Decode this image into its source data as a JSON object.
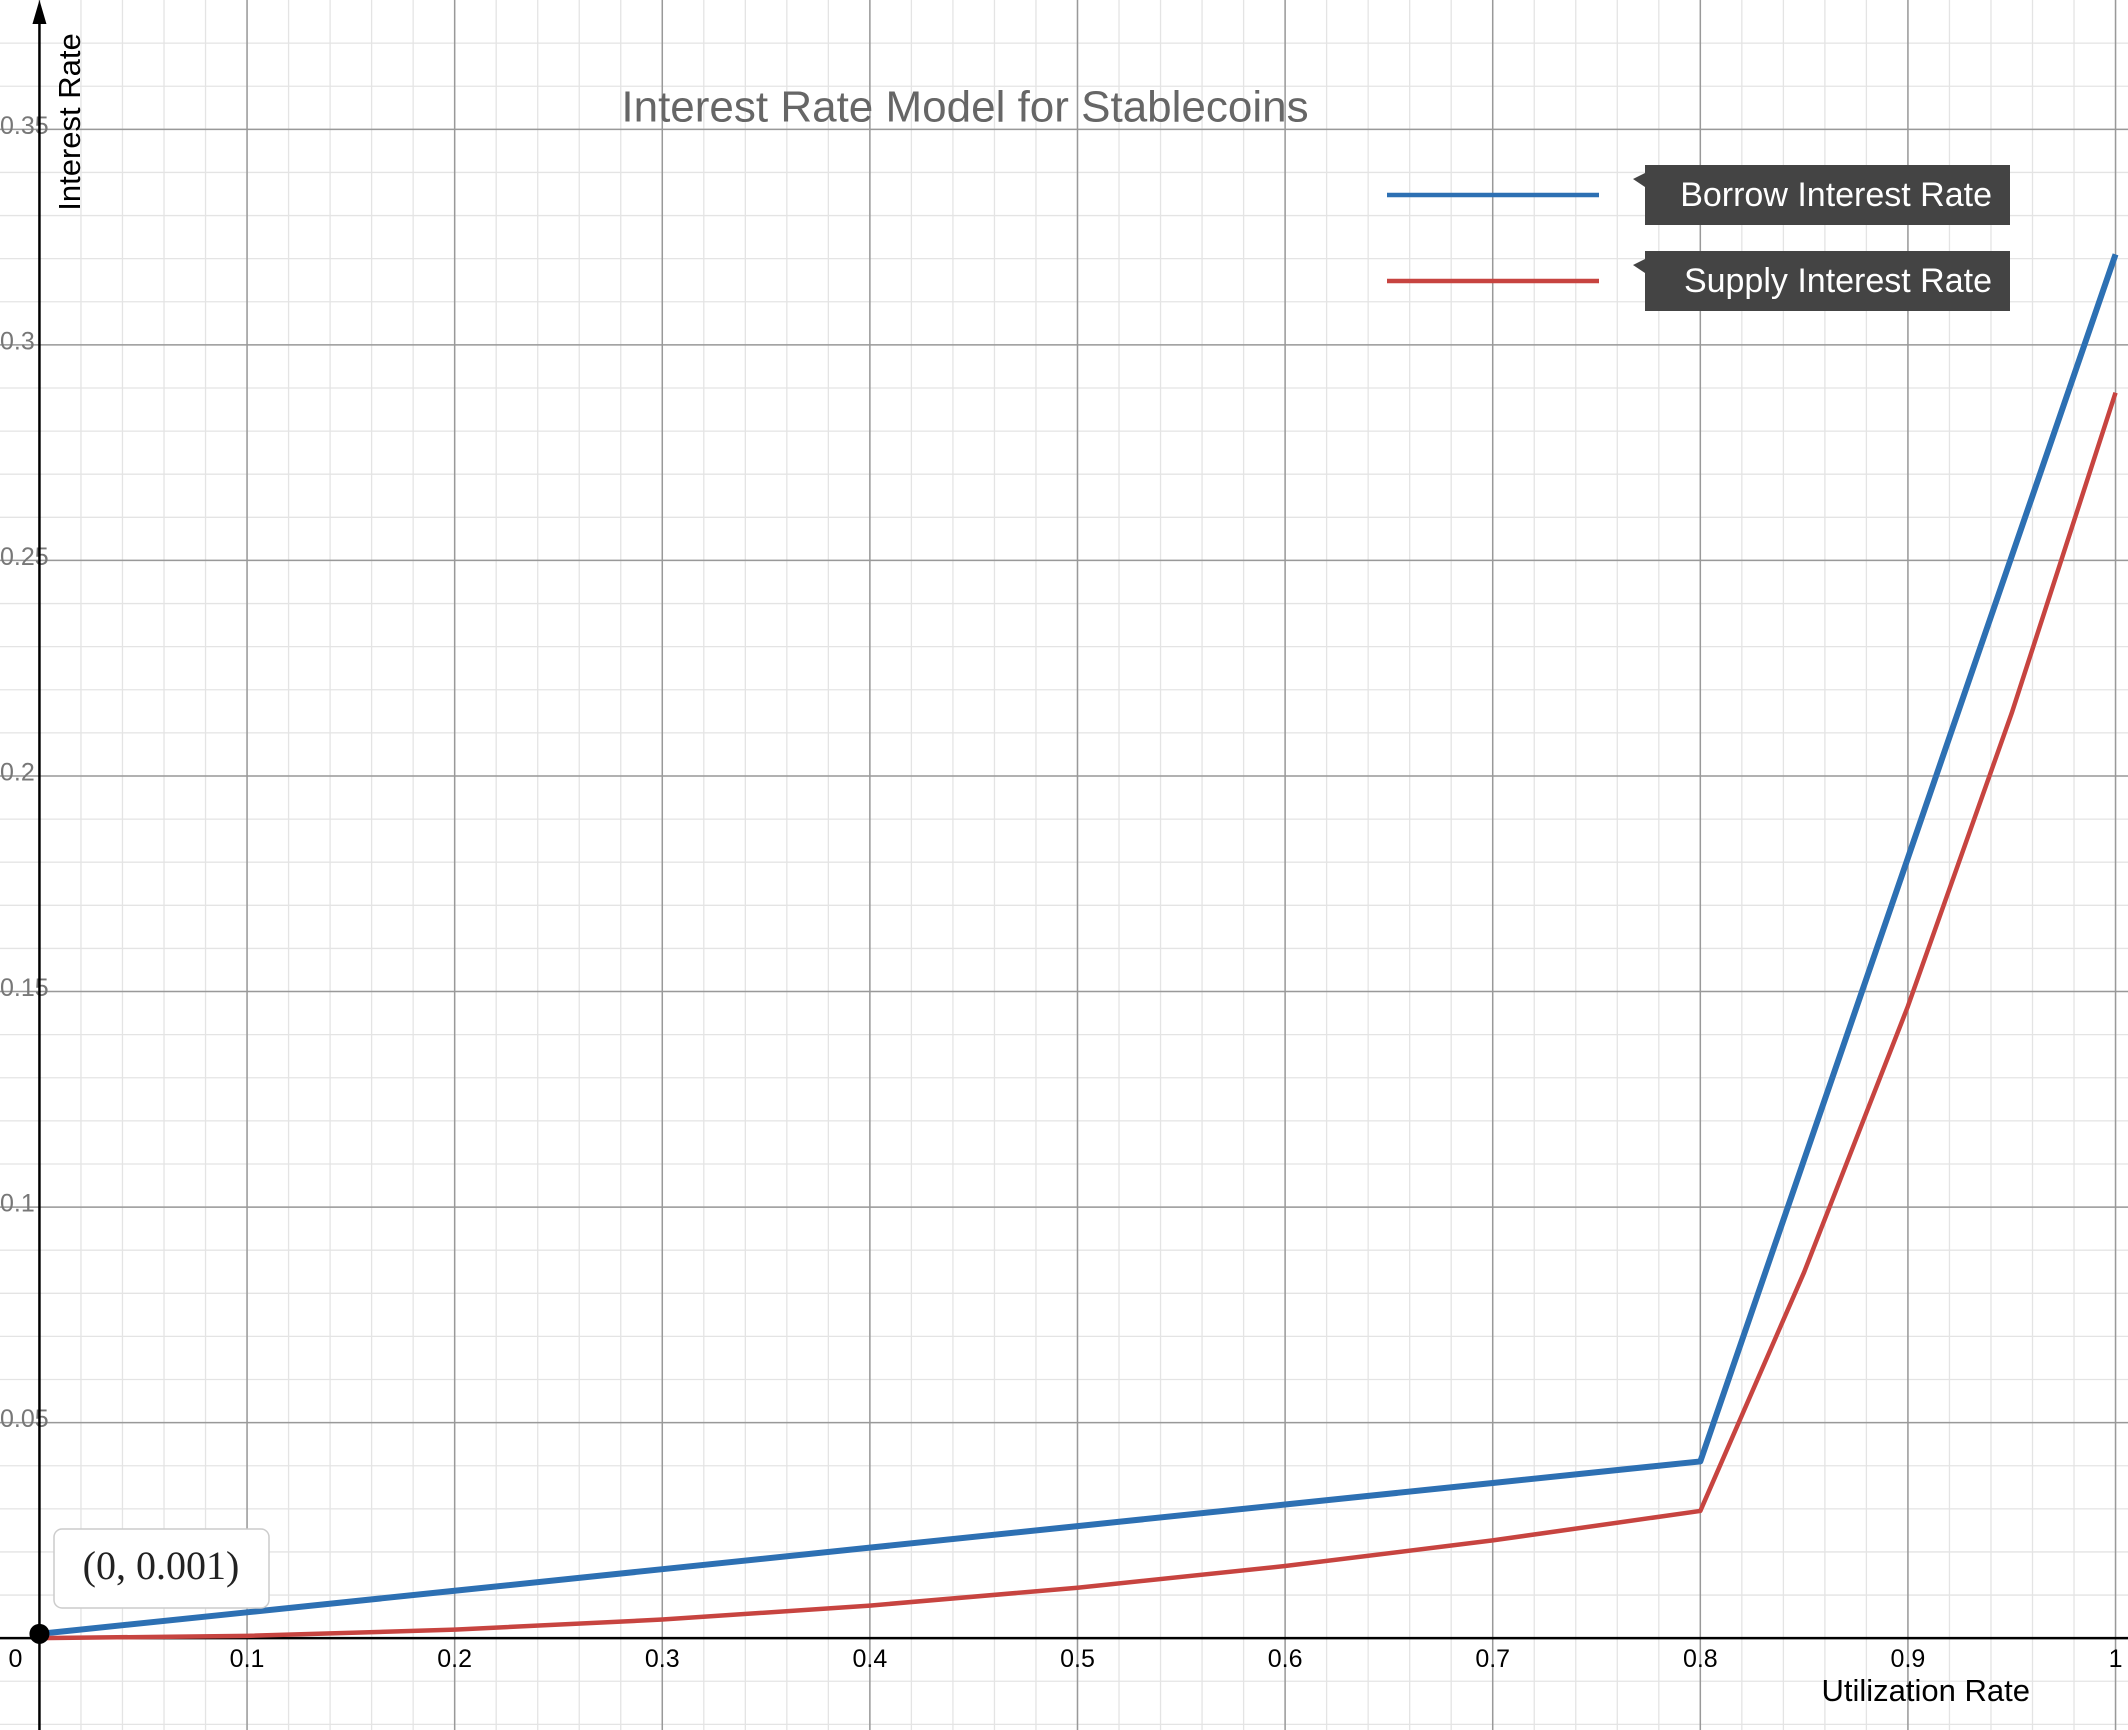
{
  "chart_data": {
    "type": "line",
    "title": "Interest Rate Model for Stablecoins",
    "x_label": "Utilization Rate",
    "y_label": "Interest Rate",
    "x": [
      0,
      0.1,
      0.2,
      0.3,
      0.4,
      0.5,
      0.6,
      0.7,
      0.8,
      0.85,
      0.9,
      0.95,
      1
    ],
    "series": [
      {
        "name": "Borrow Interest Rate",
        "color": "#2d70b3",
        "values": [
          0.001,
          0.006,
          0.011,
          0.016,
          0.021,
          0.026,
          0.031,
          0.036,
          0.041,
          0.111,
          0.181,
          0.251,
          0.321
        ]
      },
      {
        "name": "Supply Interest Rate",
        "color": "#c74440",
        "values": [
          0,
          0.00054,
          0.00198,
          0.00432,
          0.00756,
          0.0117,
          0.01674,
          0.02268,
          0.02952,
          0.0849,
          0.1466,
          0.2146,
          0.2889
        ]
      }
    ],
    "xlim": [
      -0.019,
      1.006
    ],
    "ylim": [
      -0.0213,
      0.38
    ],
    "xticks": [
      0,
      0.1,
      0.2,
      0.3,
      0.4,
      0.5,
      0.6,
      0.7,
      0.8,
      0.9,
      1
    ],
    "yticks": [
      0.05,
      0.1,
      0.15,
      0.2,
      0.25,
      0.3,
      0.35
    ],
    "grid": true,
    "legend": "upper right",
    "annotation": {
      "x": 0,
      "y": 0.001,
      "label": "(0, 0.001)"
    }
  }
}
